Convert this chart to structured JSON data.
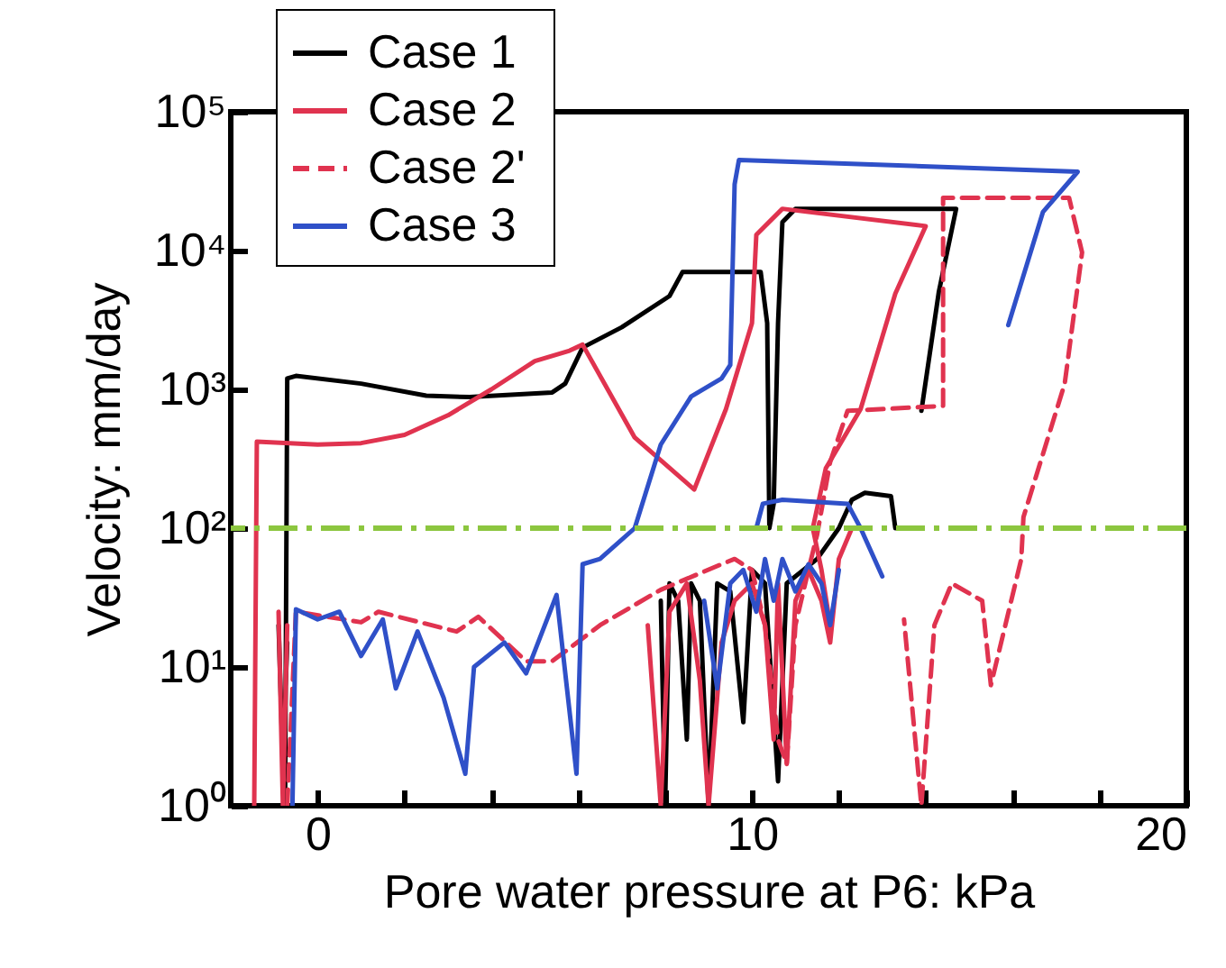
{
  "chart_data": {
    "type": "line",
    "xlabel": "Pore water pressure at P6: kPa",
    "ylabel": "Velocity: mm/day",
    "log": "y",
    "grid": false,
    "legend": "top left",
    "xlim": [
      -2,
      20
    ],
    "xticks": [
      0,
      {
        "value": 2,
        "label": null
      },
      {
        "value": 4,
        "label": null
      },
      {
        "value": 6,
        "label": null
      },
      {
        "value": 8,
        "label": null
      },
      10,
      {
        "value": 12,
        "label": null
      },
      {
        "value": 14,
        "label": null
      },
      {
        "value": 16,
        "label": null
      },
      {
        "value": 18,
        "label": null
      },
      20
    ],
    "ylim": [
      1,
      100000
    ],
    "yticks": [
      {
        "value": 1,
        "label": "10⁰"
      },
      {
        "value": 10,
        "label": "10¹"
      },
      {
        "value": 100,
        "label": "10²"
      },
      {
        "value": 1000,
        "label": "10³"
      },
      {
        "value": 10000,
        "label": "10⁴"
      },
      {
        "value": 100000,
        "label": "10⁵"
      }
    ],
    "ref_lines": [
      {
        "axis": "y",
        "value": 100,
        "color": "#8cc63f",
        "line_style": "dashed"
      }
    ],
    "series": [
      {
        "name": "Case  1",
        "color": "#000000",
        "line_style": "solid",
        "x": [
          -0.75,
          -0.7,
          -0.5,
          1,
          2.5,
          3.5,
          5.4,
          5.7,
          6.1,
          7,
          8.1,
          8.4,
          10.2,
          10.35,
          10.4,
          10.5,
          10.6,
          10.7,
          11,
          14.7,
          14.3,
          13.9,
          null,
          -0.9,
          -0.8,
          -0.7,
          null,
          7.9,
          8,
          8.1,
          8.3,
          8.5,
          8.6,
          8.8,
          9,
          9.2,
          9.5,
          9.8,
          10,
          10.3,
          10.6,
          10.8,
          11.5,
          12,
          12.3,
          12.6,
          13.2,
          13.3
        ],
        "values": [
          1,
          1200,
          1250,
          1100,
          900,
          880,
          950,
          1100,
          2000,
          2800,
          4700,
          7000,
          7000,
          3000,
          100,
          150,
          3000,
          16000,
          20000,
          20000,
          5000,
          700,
          null,
          20,
          2,
          15,
          null,
          30,
          1,
          40,
          30,
          3,
          40,
          30,
          1,
          40,
          35,
          4,
          50,
          40,
          1.5,
          40,
          60,
          100,
          160,
          180,
          170,
          100
        ]
      },
      {
        "name": "Case  2",
        "color": "#e0334f",
        "line_style": "solid",
        "x": [
          -1.46,
          -1.4,
          0,
          1,
          2,
          3,
          4,
          5,
          5.8,
          6.1,
          7.3,
          8.67,
          9.4,
          10,
          10.1,
          10.7,
          14,
          13.3,
          12.5,
          11.7,
          11.4,
          11.6,
          11.8,
          null,
          -0.9,
          -0.8,
          -0.7,
          null,
          7.6,
          7.9,
          8.1,
          8.5,
          8.8,
          9,
          9.3,
          9.6,
          10,
          10.3,
          10.5,
          10.6,
          10.8,
          11,
          11.3,
          11.6,
          11.8,
          12,
          12.3
        ],
        "values": [
          1,
          420,
          400,
          410,
          470,
          650,
          1000,
          1600,
          1900,
          2100,
          450,
          190,
          720,
          3000,
          13000,
          20000,
          15000,
          4900,
          720,
          270,
          100,
          50,
          20,
          null,
          25,
          1,
          20,
          null,
          20,
          1,
          25,
          40,
          8,
          1,
          15,
          30,
          40,
          20,
          3,
          40,
          2,
          30,
          50,
          30,
          15,
          60,
          100
        ]
      },
      {
        "name": "Case  2'",
        "color": "#e0334f",
        "line_style": "dashed",
        "x": [
          -0.7,
          -0.5,
          1,
          1.4,
          3.2,
          3.7,
          4.8,
          5.4,
          6.5,
          7.9,
          9.3,
          9.6,
          10,
          10.3,
          10.6,
          10.8,
          11,
          11.3,
          11.5,
          11.8,
          12.2,
          14.4,
          14.4,
          17.3,
          17.6,
          17.2,
          16.25,
          16.2,
          15.5,
          15.3,
          14.6,
          14.2,
          13.9,
          13.5
        ],
        "values": [
          1,
          25,
          21,
          25,
          18,
          23,
          11,
          11,
          20,
          36,
          55,
          60,
          50,
          20,
          3,
          2,
          20,
          50,
          90,
          300,
          700,
          760,
          24000,
          24000,
          9700,
          1100,
          120,
          60,
          7.4,
          30,
          40,
          20,
          1,
          22
        ]
      },
      {
        "name": "Case  3",
        "color": "#2f50c8",
        "line_style": "solid",
        "x": [
          -0.58,
          -0.5,
          0,
          0.5,
          1,
          1.5,
          1.8,
          2.3,
          2.9,
          3.4,
          3.6,
          4.3,
          4.8,
          5.5,
          5.96,
          6.1,
          6.5,
          7.3,
          7.9,
          8.6,
          9.3,
          9.5,
          9.6,
          9.7,
          17.5,
          16.7,
          15.9,
          null,
          8.9,
          9.2,
          9.5,
          9.8,
          10.1,
          10.3,
          10.5,
          10.7,
          11,
          11.3,
          11.6,
          11.8,
          12,
          null,
          10.1,
          10.25,
          10.7,
          12.2,
          12.5,
          13
        ],
        "values": [
          1,
          26,
          22,
          25,
          12,
          22,
          7,
          18,
          6,
          1.7,
          10,
          15,
          9,
          33,
          1.7,
          55,
          60,
          100,
          400,
          890,
          1200,
          1500,
          30000,
          45000,
          37000,
          19000,
          2900,
          null,
          30,
          7,
          40,
          50,
          25,
          60,
          30,
          60,
          35,
          55,
          40,
          20,
          50,
          null,
          100,
          150,
          160,
          150,
          100,
          45
        ]
      }
    ]
  }
}
